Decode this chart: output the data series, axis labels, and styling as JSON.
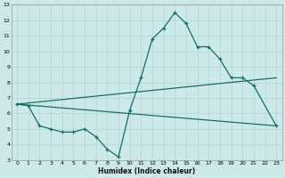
{
  "xlabel": "Humidex (Indice chaleur)",
  "ylabel": "",
  "bg_color": "#cce8e8",
  "grid_color": "#b0d4d4",
  "line_color": "#1a6b6b",
  "xlim": [
    -0.5,
    23.5
  ],
  "ylim": [
    3,
    13
  ],
  "xticks": [
    0,
    1,
    2,
    3,
    4,
    5,
    6,
    7,
    8,
    9,
    10,
    11,
    12,
    13,
    14,
    15,
    16,
    17,
    18,
    19,
    20,
    21,
    22,
    23
  ],
  "yticks": [
    3,
    4,
    5,
    6,
    7,
    8,
    9,
    10,
    11,
    12,
    13
  ],
  "curve1_x": [
    0,
    1,
    2,
    3,
    4,
    5,
    6,
    7,
    8,
    9,
    10,
    11,
    12,
    13,
    14,
    15,
    16,
    17,
    18,
    19,
    20,
    21,
    23
  ],
  "curve1_y": [
    6.6,
    6.5,
    5.2,
    5.0,
    4.8,
    4.8,
    5.0,
    4.5,
    3.7,
    3.2,
    6.2,
    8.3,
    10.8,
    11.5,
    12.5,
    11.8,
    10.3,
    10.3,
    9.5,
    8.3,
    8.3,
    7.8,
    5.2
  ],
  "line1_x": [
    0,
    23
  ],
  "line1_y": [
    6.6,
    5.2
  ],
  "line2_x": [
    0,
    23
  ],
  "line2_y": [
    6.6,
    8.3
  ]
}
